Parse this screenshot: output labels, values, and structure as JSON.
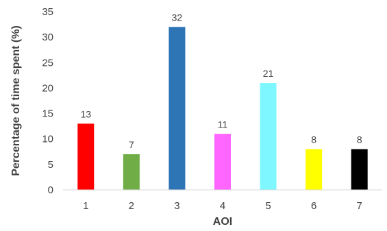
{
  "chart_data": {
    "type": "bar",
    "categories": [
      "1",
      "2",
      "3",
      "4",
      "5",
      "6",
      "7"
    ],
    "values": [
      13,
      7,
      32,
      11,
      21,
      8,
      8
    ],
    "colors": [
      "#ff0000",
      "#70ad47",
      "#2e75b6",
      "#ff66ff",
      "#7ff7ff",
      "#ffff00",
      "#000000"
    ],
    "data_labels": [
      "13",
      "7",
      "32",
      "11",
      "21",
      "8",
      "8"
    ],
    "xlabel": "AOI",
    "ylabel": "Percentage of time spent (%)",
    "ylim": [
      0,
      35
    ],
    "yticks": [
      0,
      5,
      10,
      15,
      20,
      25,
      30,
      35
    ],
    "grid": false,
    "legend": "none"
  }
}
